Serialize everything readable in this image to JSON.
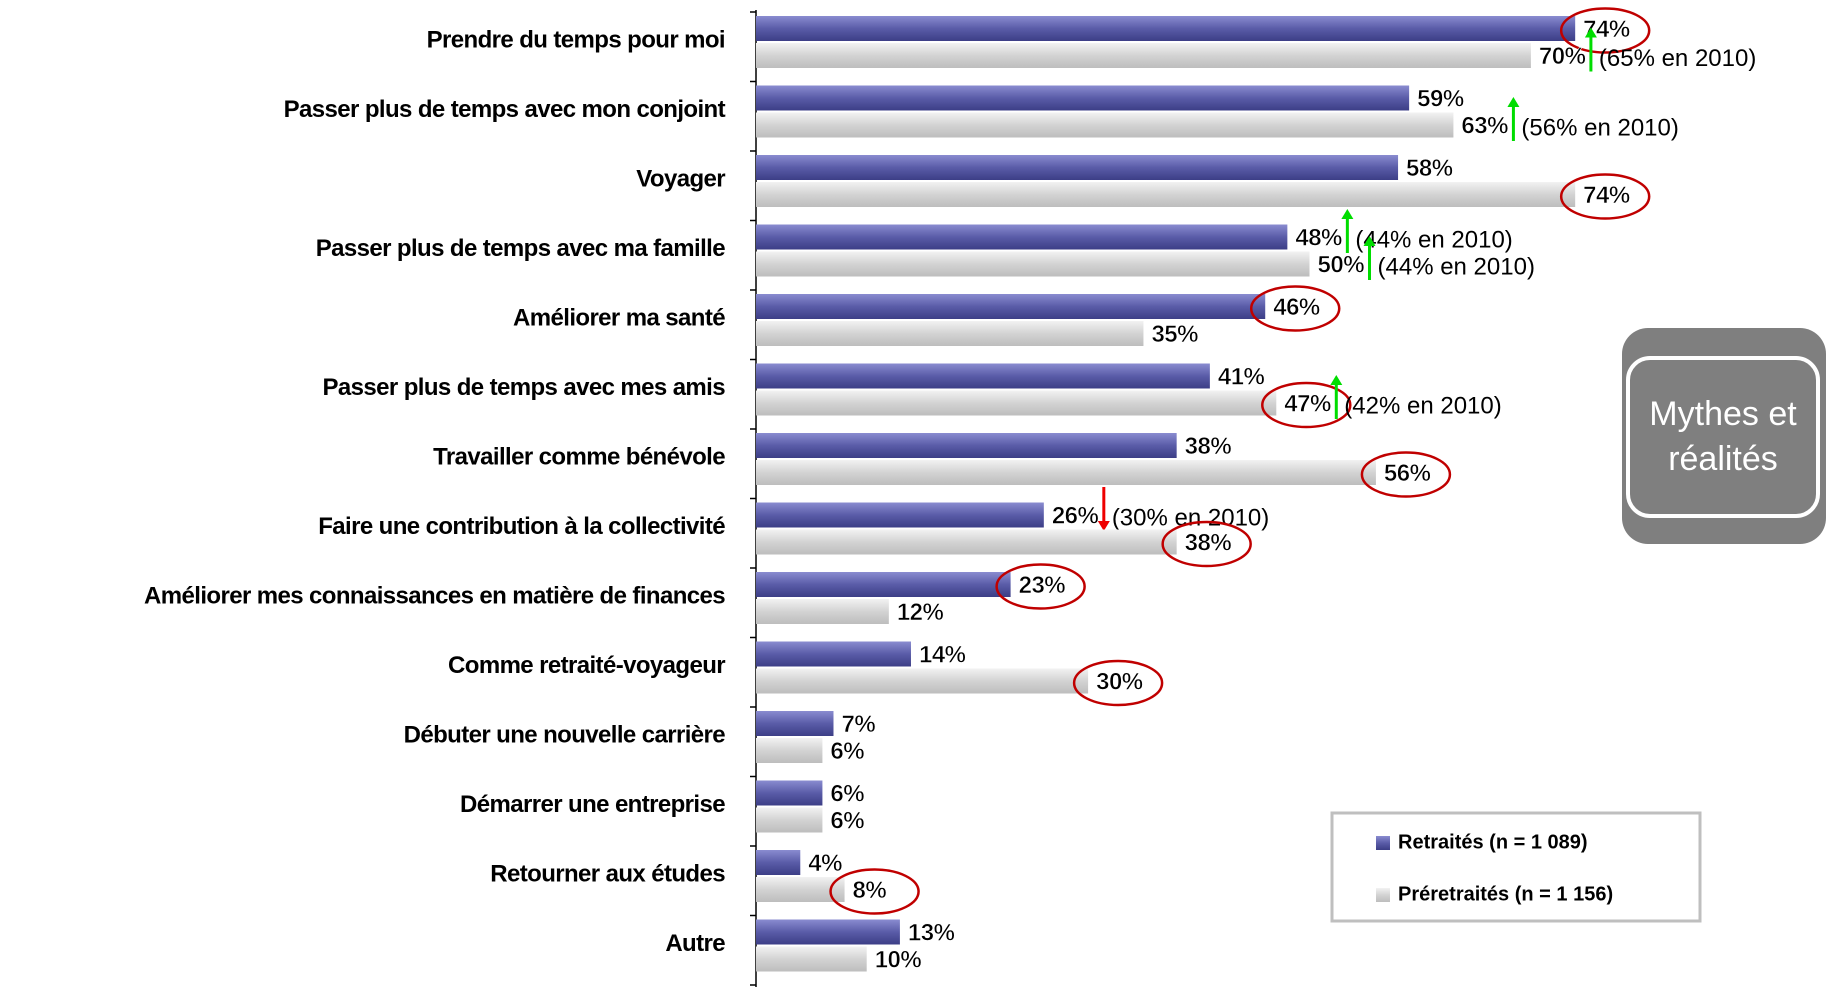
{
  "chart_data": {
    "type": "bar",
    "orientation": "horizontal",
    "categories": [
      "Prendre du temps pour moi",
      "Passer plus de temps avec mon conjoint",
      "Voyager",
      "Passer plus de temps avec ma famille",
      "Améliorer ma santé",
      "Passer plus de temps avec mes amis",
      "Travailler comme bénévole",
      "Faire une contribution à la collectivité",
      "Améliorer mes connaissances en matière de finances",
      "Comme retraité-voyageur",
      "Débuter une nouvelle carrière",
      "Démarrer une entreprise",
      "Retourner aux études",
      "Autre"
    ],
    "series": [
      {
        "name": "Retraités (n = 1 089)",
        "color": "#5a5ca8",
        "values": [
          74,
          59,
          58,
          48,
          46,
          41,
          38,
          26,
          23,
          14,
          7,
          6,
          4,
          13
        ],
        "value_labels": [
          "74%",
          "59%",
          "58%",
          "48%",
          "46%",
          "41%",
          "38%",
          "26%",
          "23%",
          "14%",
          "7%",
          "6%",
          "4%",
          "13%"
        ],
        "highlight": [
          true,
          false,
          false,
          false,
          true,
          false,
          false,
          false,
          true,
          false,
          false,
          false,
          false,
          false
        ],
        "arrows": [
          null,
          null,
          null,
          "up",
          null,
          null,
          null,
          "down",
          null,
          null,
          null,
          null,
          null,
          null
        ],
        "notes": [
          null,
          null,
          null,
          "(44% en 2010)",
          null,
          null,
          null,
          "(30% en 2010)",
          null,
          null,
          null,
          null,
          null,
          null
        ]
      },
      {
        "name": "Préretraités (n = 1 156)",
        "color": "#d3d3d3",
        "values": [
          70,
          63,
          74,
          50,
          35,
          47,
          56,
          38,
          12,
          30,
          6,
          6,
          8,
          10
        ],
        "value_labels": [
          "70%",
          "63%",
          "74%",
          "50%",
          "35%",
          "47%",
          "56%",
          "38%",
          "12%",
          "30%",
          "6%",
          "6%",
          "8%",
          "10%"
        ],
        "highlight": [
          false,
          false,
          true,
          false,
          false,
          true,
          true,
          true,
          false,
          true,
          false,
          false,
          true,
          false
        ],
        "arrows": [
          "up",
          "up",
          null,
          "up",
          null,
          "up",
          null,
          null,
          null,
          null,
          null,
          null,
          null,
          null
        ],
        "notes": [
          "(65% en 2010)",
          "(56% en 2010)",
          null,
          "(44% en 2010)",
          null,
          "(42% en 2010)",
          null,
          null,
          null,
          null,
          null,
          null,
          null,
          null
        ]
      }
    ],
    "legend": "lower right",
    "badge": [
      "Mythes et",
      "réalités"
    ]
  }
}
